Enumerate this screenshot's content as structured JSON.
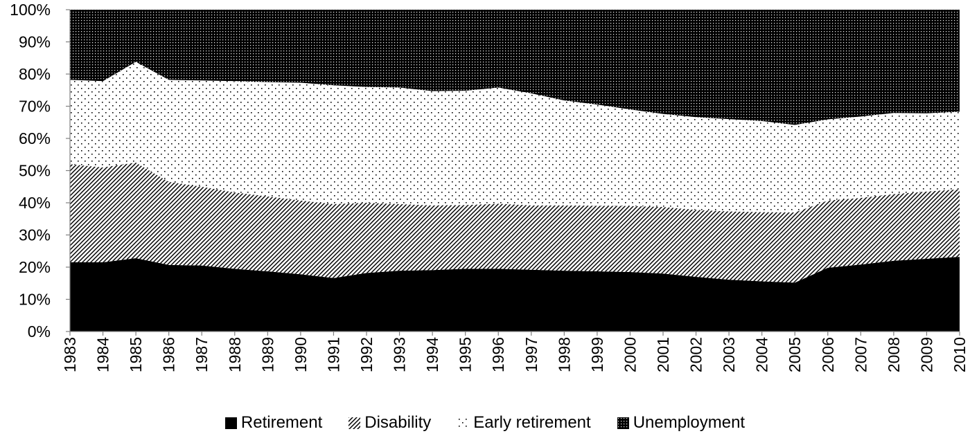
{
  "chart_data": {
    "type": "area",
    "stacked": true,
    "normalized": true,
    "x": [
      "1983",
      "1984",
      "1985",
      "1986",
      "1987",
      "1988",
      "1989",
      "1990",
      "1991",
      "1992",
      "1993",
      "1994",
      "1995",
      "1996",
      "1997",
      "1998",
      "1999",
      "2000",
      "2001",
      "2002",
      "2003",
      "2004",
      "2005",
      "2006",
      "2007",
      "2008",
      "2009",
      "2010"
    ],
    "ylim": [
      0,
      100
    ],
    "yticks": [
      "0%",
      "10%",
      "20%",
      "30%",
      "40%",
      "50%",
      "60%",
      "70%",
      "80%",
      "90%",
      "100%"
    ],
    "title": "",
    "xlabel": "",
    "ylabel": "",
    "grid": false,
    "legend_position": "bottom",
    "series": [
      {
        "name": "Retirement",
        "color": "#000000",
        "pattern": "solid",
        "values": [
          21.5,
          21.5,
          22.8,
          20.7,
          20.5,
          19.5,
          18.7,
          17.8,
          16.6,
          18.2,
          18.9,
          19.1,
          19.5,
          19.5,
          19.2,
          18.9,
          18.7,
          18.5,
          18.0,
          17.0,
          16.1,
          15.6,
          15.2,
          19.8,
          20.8,
          22.0,
          22.6,
          23.2
        ]
      },
      {
        "name": "Disability",
        "color": "#000000",
        "pattern": "diagonal",
        "values": [
          30.5,
          29.5,
          29.7,
          25.8,
          24.5,
          23.7,
          23.3,
          22.9,
          23.0,
          21.8,
          20.7,
          20.1,
          19.8,
          20.2,
          20.0,
          20.3,
          20.4,
          20.5,
          20.7,
          20.8,
          21.2,
          21.5,
          21.8,
          20.9,
          20.7,
          20.7,
          20.9,
          21.0
        ]
      },
      {
        "name": "Early retirement",
        "color": "#000000",
        "pattern": "sparse-dots",
        "values": [
          26.2,
          26.8,
          31.3,
          31.7,
          33.0,
          34.6,
          35.5,
          36.6,
          36.9,
          36.0,
          36.2,
          35.5,
          35.5,
          36.1,
          34.8,
          32.6,
          31.4,
          30.0,
          28.9,
          28.8,
          28.7,
          28.3,
          27.2,
          25.2,
          25.3,
          25.2,
          24.3,
          24.1
        ]
      },
      {
        "name": "Unemployment",
        "color": "#000000",
        "pattern": "dense-dots",
        "values": [
          21.8,
          22.2,
          16.2,
          21.8,
          22.0,
          22.2,
          22.5,
          22.7,
          23.5,
          24.0,
          24.2,
          25.3,
          25.2,
          24.2,
          26.0,
          28.2,
          29.5,
          31.0,
          32.4,
          33.4,
          34.0,
          34.6,
          35.8,
          34.1,
          33.2,
          32.1,
          32.2,
          31.7
        ]
      }
    ]
  }
}
